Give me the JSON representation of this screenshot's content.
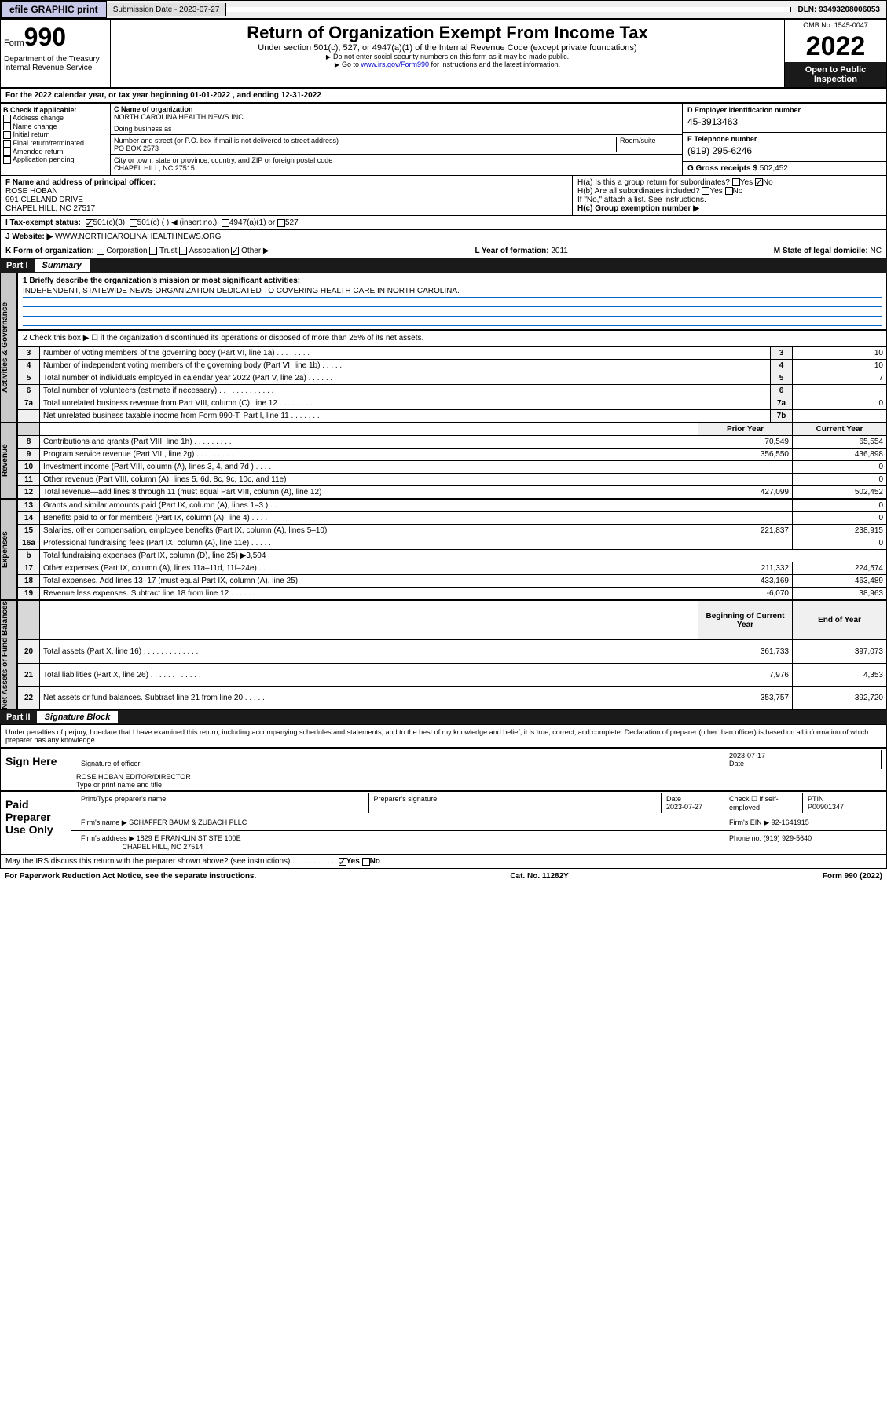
{
  "topbar": {
    "efile": "efile GRAPHIC print",
    "sub_label": "Submission Date - 2023-07-27",
    "dln": "DLN: 93493208006053"
  },
  "header": {
    "form_small": "Form",
    "form_num": "990",
    "title": "Return of Organization Exempt From Income Tax",
    "sub1": "Under section 501(c), 527, or 4947(a)(1) of the Internal Revenue Code (except private foundations)",
    "sub2": "Do not enter social security numbers on this form as it may be made public.",
    "sub3": "Go to www.irs.gov/Form990 for instructions and the latest information.",
    "omb": "OMB No. 1545-0047",
    "year": "2022",
    "open": "Open to Public Inspection",
    "dept": "Department of the Treasury Internal Revenue Service"
  },
  "period": "For the 2022 calendar year, or tax year beginning 01-01-2022  , and ending 12-31-2022",
  "b": {
    "label": "B Check if applicable:",
    "items": [
      "Address change",
      "Name change",
      "Initial return",
      "Final return/terminated",
      "Amended return",
      "Application pending"
    ]
  },
  "c": {
    "lbl": "C Name of organization",
    "name": "NORTH CAROLINA HEALTH NEWS INC",
    "dba_lbl": "Doing business as",
    "addr_lbl": "Number and street (or P.O. box if mail is not delivered to street address)",
    "room": "Room/suite",
    "addr": "PO BOX 2573",
    "city_lbl": "City or town, state or province, country, and ZIP or foreign postal code",
    "city": "CHAPEL HILL, NC  27515"
  },
  "d": {
    "lbl": "D Employer identification number",
    "val": "45-3913463"
  },
  "e": {
    "lbl": "E Telephone number",
    "val": "(919) 295-6246"
  },
  "g": {
    "lbl": "G Gross receipts $",
    "val": "502,452"
  },
  "f": {
    "lbl": "F Name and address of principal officer:",
    "name": "ROSE HOBAN",
    "addr1": "991 CLELAND DRIVE",
    "addr2": "CHAPEL HILL, NC  27517"
  },
  "h": {
    "ha": "H(a)  Is this a group return for subordinates?",
    "hb": "H(b)  Are all subordinates included?",
    "hb2": "If \"No,\" attach a list. See instructions.",
    "hc": "H(c)  Group exemption number ▶",
    "yes": "Yes",
    "no": "No"
  },
  "i": {
    "lbl": "I  Tax-exempt status:",
    "opts": [
      "501(c)(3)",
      "501(c) (  ) ◀ (insert no.)",
      "4947(a)(1) or",
      "527"
    ]
  },
  "j": {
    "lbl": "J  Website: ▶",
    "val": "WWW.NORTHCAROLINAHEALTHNEWS.ORG"
  },
  "k": {
    "lbl": "K Form of organization:",
    "opts": [
      "Corporation",
      "Trust",
      "Association",
      "Other ▶"
    ]
  },
  "l": {
    "lbl": "L Year of formation:",
    "val": "2011"
  },
  "m": {
    "lbl": "M State of legal domicile:",
    "val": "NC"
  },
  "part1": {
    "hdr": "Part I",
    "title": "Summary",
    "q1": "1  Briefly describe the organization's mission or most significant activities:",
    "q1a": "INDEPENDENT, STATEWIDE NEWS ORGANIZATION DEDICATED TO COVERING HEALTH CARE IN NORTH CAROLINA.",
    "q2": "2  Check this box ▶ ☐  if the organization discontinued its operations or disposed of more than 25% of its net assets.",
    "rows_gov": [
      {
        "n": "3",
        "t": "Number of voting members of the governing body (Part VI, line 1a)  .   .   .   .   .   .   .   .",
        "k": "3",
        "v": "10"
      },
      {
        "n": "4",
        "t": "Number of independent voting members of the governing body (Part VI, line 1b)  .   .   .   .   .",
        "k": "4",
        "v": "10"
      },
      {
        "n": "5",
        "t": "Total number of individuals employed in calendar year 2022 (Part V, line 2a)  .   .   .   .   .   .",
        "k": "5",
        "v": "7"
      },
      {
        "n": "6",
        "t": "Total number of volunteers (estimate if necessary)  .   .   .   .   .   .   .   .   .   .   .   .   .",
        "k": "6",
        "v": ""
      },
      {
        "n": "7a",
        "t": "Total unrelated business revenue from Part VIII, column (C), line 12  .   .   .   .   .   .   .   .",
        "k": "7a",
        "v": "0"
      },
      {
        "n": "",
        "t": "Net unrelated business taxable income from Form 990-T, Part I, line 11  .   .   .   .   .   .   .",
        "k": "7b",
        "v": ""
      }
    ],
    "col_hdr": {
      "prior": "Prior Year",
      "curr": "Current Year"
    },
    "rows_rev": [
      {
        "n": "8",
        "t": "Contributions and grants (Part VIII, line 1h)  .   .   .   .   .   .   .   .   .",
        "p": "70,549",
        "c": "65,554"
      },
      {
        "n": "9",
        "t": "Program service revenue (Part VIII, line 2g)  .   .   .   .   .   .   .   .   .",
        "p": "356,550",
        "c": "436,898"
      },
      {
        "n": "10",
        "t": "Investment income (Part VIII, column (A), lines 3, 4, and 7d )   .   .   .   .",
        "p": "",
        "c": "0"
      },
      {
        "n": "11",
        "t": "Other revenue (Part VIII, column (A), lines 5, 6d, 8c, 9c, 10c, and 11e)",
        "p": "",
        "c": "0"
      },
      {
        "n": "12",
        "t": "Total revenue—add lines 8 through 11 (must equal Part VIII, column (A), line 12)",
        "p": "427,099",
        "c": "502,452"
      }
    ],
    "rows_exp": [
      {
        "n": "13",
        "t": "Grants and similar amounts paid (Part IX, column (A), lines 1–3 )  .   .   .",
        "p": "",
        "c": "0"
      },
      {
        "n": "14",
        "t": "Benefits paid to or for members (Part IX, column (A), line 4)  .   .   .   .",
        "p": "",
        "c": "0"
      },
      {
        "n": "15",
        "t": "Salaries, other compensation, employee benefits (Part IX, column (A), lines 5–10)",
        "p": "221,837",
        "c": "238,915"
      },
      {
        "n": "16a",
        "t": "Professional fundraising fees (Part IX, column (A), line 11e)  .   .   .   .   .",
        "p": "",
        "c": "0"
      },
      {
        "n": "b",
        "t": "Total fundraising expenses (Part IX, column (D), line 25) ▶3,504",
        "p": null,
        "c": null
      },
      {
        "n": "17",
        "t": "Other expenses (Part IX, column (A), lines 11a–11d, 11f–24e)  .   .   .   .",
        "p": "211,332",
        "c": "224,574"
      },
      {
        "n": "18",
        "t": "Total expenses. Add lines 13–17 (must equal Part IX, column (A), line 25)",
        "p": "433,169",
        "c": "463,489"
      },
      {
        "n": "19",
        "t": "Revenue less expenses. Subtract line 18 from line 12  .   .   .   .   .   .   .",
        "p": "-6,070",
        "c": "38,963"
      }
    ],
    "col_hdr2": {
      "beg": "Beginning of Current Year",
      "end": "End of Year"
    },
    "rows_net": [
      {
        "n": "20",
        "t": "Total assets (Part X, line 16)  .   .   .   .   .   .   .   .   .   .   .   .   .",
        "p": "361,733",
        "c": "397,073"
      },
      {
        "n": "21",
        "t": "Total liabilities (Part X, line 26)  .   .   .   .   .   .   .   .   .   .   .   .",
        "p": "7,976",
        "c": "4,353"
      },
      {
        "n": "22",
        "t": "Net assets or fund balances. Subtract line 21 from line 20  .   .   .   .   .",
        "p": "353,757",
        "c": "392,720"
      }
    ],
    "vert": {
      "gov": "Activities & Governance",
      "rev": "Revenue",
      "exp": "Expenses",
      "net": "Net Assets or Fund Balances"
    }
  },
  "part2": {
    "hdr": "Part II",
    "title": "Signature Block",
    "penal": "Under penalties of perjury, I declare that I have examined this return, including accompanying schedules and statements, and to the best of my knowledge and belief, it is true, correct, and complete. Declaration of preparer (other than officer) is based on all information of which preparer has any knowledge."
  },
  "sign": {
    "here": "Sign Here",
    "sig_lbl": "Signature of officer",
    "date_lbl": "Date",
    "date": "2023-07-17",
    "name": "ROSE HOBAN  EDITOR/DIRECTOR",
    "name_lbl": "Type or print name and title"
  },
  "paid": {
    "hdr": "Paid Preparer Use Only",
    "pt_lbl": "Print/Type preparer's name",
    "sig_lbl": "Preparer's signature",
    "date_lbl": "Date",
    "date": "2023-07-27",
    "chk_lbl": "Check ☐ if self-employed",
    "ptin_lbl": "PTIN",
    "ptin": "P00901347",
    "firm_lbl": "Firm's name  ▶",
    "firm": "SCHAFFER BAUM & ZUBACH PLLC",
    "ein_lbl": "Firm's EIN ▶",
    "ein": "92-1641915",
    "addr_lbl": "Firm's address ▶",
    "addr1": "1829 E FRANKLIN ST STE 100E",
    "addr2": "CHAPEL HILL, NC  27514",
    "phone_lbl": "Phone no.",
    "phone": "(919) 929-5640"
  },
  "discuss": "May the IRS discuss this return with the preparer shown above? (see instructions)  .   .   .   .   .   .   .   .   .   .",
  "footer": {
    "pra": "For Paperwork Reduction Act Notice, see the separate instructions.",
    "cat": "Cat. No. 11282Y",
    "form": "Form 990 (2022)"
  }
}
